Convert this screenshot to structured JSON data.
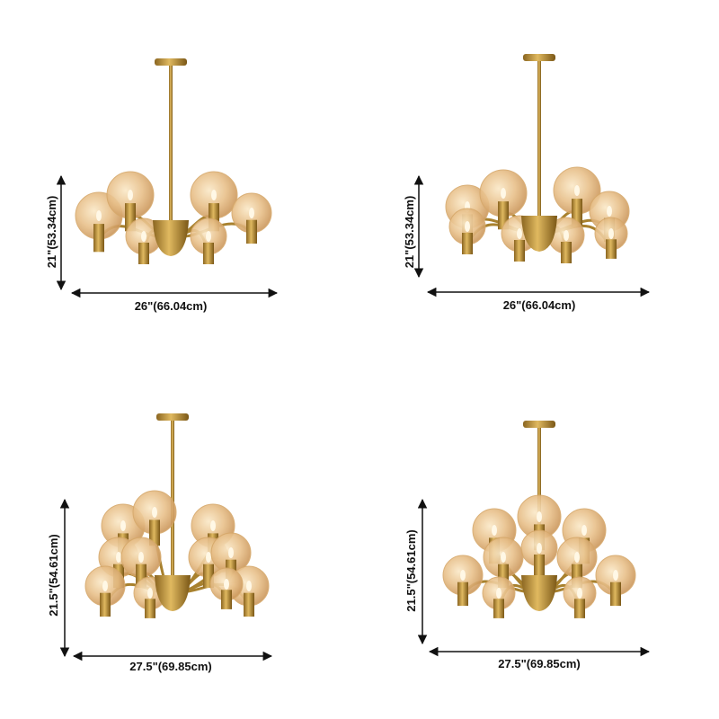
{
  "panels": [
    {
      "height_label": "21\"(53.34cm)",
      "width_label": "26\"(66.04cm)"
    },
    {
      "height_label": "21\"(53.34cm)",
      "width_label": "26\"(66.04cm)"
    },
    {
      "height_label": "21.5\"(54.61cm)",
      "width_label": "27.5\"(69.85cm)"
    },
    {
      "height_label": "21.5\"(54.61cm)",
      "width_label": "27.5\"(69.85cm)"
    }
  ]
}
